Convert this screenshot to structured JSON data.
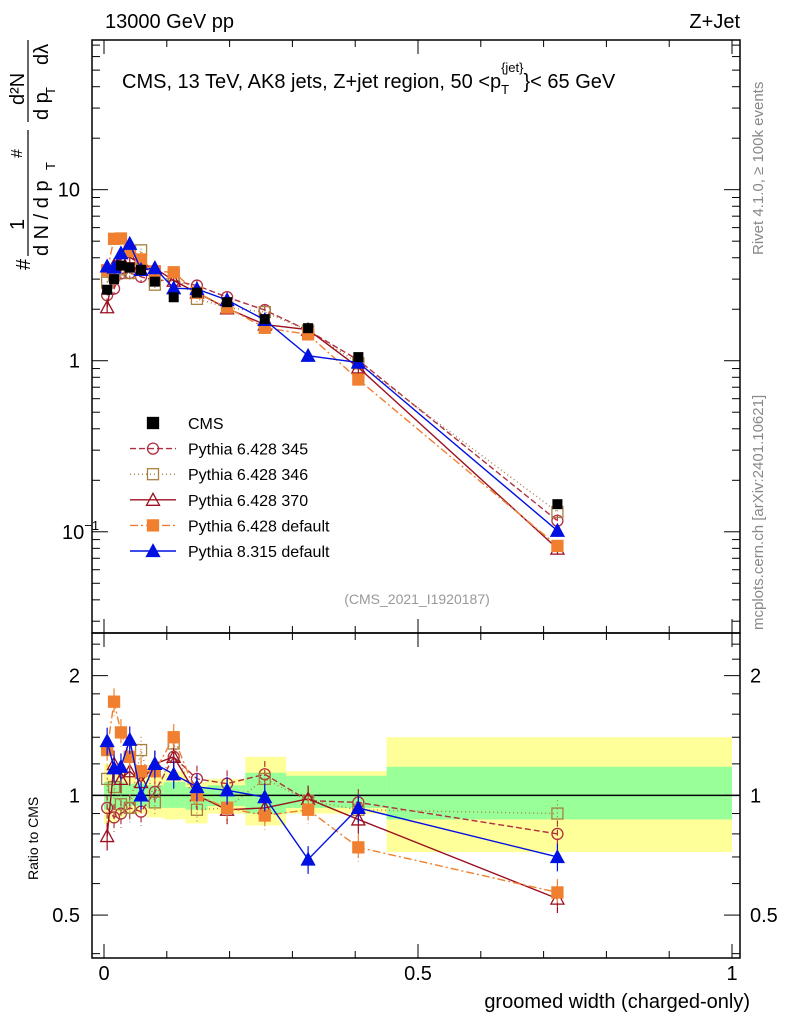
{
  "header": {
    "left": "13000 GeV pp",
    "right": "Z+Jet"
  },
  "side_text": {
    "top": "Rivet 4.1.0, ≥ 100k events",
    "bottom": "mcplots.cern.ch [arXiv:2401.10621]"
  },
  "chart_data": {
    "type": "line",
    "title": "CMS, 13 TeV, AK8 jets, Z+jet region, 50 <p_T^{jet}< 65 GeV",
    "title_parts": {
      "main": "CMS, 13 TeV, AK8 jets, Z+jet region, 50 <p",
      "sub": "T",
      "sup": "{jet}",
      "tail": "}< 65 GeV"
    },
    "analysis_label": "(CMS_2021_I1920187)",
    "ylabel": "1/(dN/dp_T) d²N/(dp_T dλ)",
    "ylabel_parts": {
      "hash": "#",
      "one": "1",
      "den": "d N / d p",
      "T": "T",
      "num": "d²N",
      "den2": "d p",
      "dl": "dλ"
    },
    "ratio_ylabel": "Ratio to CMS",
    "xlabel": "groomed width (charged-only)",
    "xlim": [
      0,
      1
    ],
    "ylim": [
      0.0256,
      75
    ],
    "yscale": "log",
    "ratio_ylim": [
      0.39,
      2.56
    ],
    "x_ticks": [
      {
        "v": 0,
        "label": "0"
      },
      {
        "v": 0.5,
        "label": "0.5"
      },
      {
        "v": 1,
        "label": "1"
      }
    ],
    "y_ticks": [
      {
        "v": 0.1,
        "label": "10",
        "exp": "−1"
      },
      {
        "v": 1,
        "label": "1",
        "exp": ""
      },
      {
        "v": 10,
        "label": "10",
        "exp": ""
      }
    ],
    "ratio_ticks": [
      {
        "v": 0.5,
        "label": "0.5"
      },
      {
        "v": 1,
        "label": "1"
      },
      {
        "v": 2,
        "label": "2"
      }
    ],
    "x": [
      0.005,
      0.016,
      0.027,
      0.041,
      0.059,
      0.081,
      0.111,
      0.148,
      0.196,
      0.256,
      0.325,
      0.405,
      0.722
    ],
    "bin_edges": [
      0,
      0.01,
      0.02,
      0.033,
      0.05,
      0.068,
      0.095,
      0.13,
      0.165,
      0.225,
      0.29,
      0.36,
      0.45,
      1.0
    ],
    "data": {
      "name": "CMS",
      "values": [
        2.6,
        3.0,
        3.6,
        3.5,
        3.4,
        2.9,
        2.35,
        2.5,
        2.2,
        1.75,
        1.55,
        1.05,
        0.145
      ],
      "band_yellow": [
        [
          0.85,
          1.2
        ],
        [
          0.85,
          1.2
        ],
        [
          0.88,
          1.15
        ],
        [
          0.9,
          1.12
        ],
        [
          0.9,
          1.12
        ],
        [
          0.88,
          1.12
        ],
        [
          0.87,
          1.15
        ],
        [
          0.85,
          1.08
        ],
        [
          0.9,
          1.1
        ],
        [
          0.84,
          1.25
        ],
        [
          0.9,
          1.15
        ],
        [
          0.9,
          1.15
        ],
        [
          0.72,
          1.4
        ]
      ],
      "band_green": [
        [
          0.92,
          1.08
        ],
        [
          0.92,
          1.08
        ],
        [
          0.93,
          1.08
        ],
        [
          0.94,
          1.07
        ],
        [
          0.94,
          1.07
        ],
        [
          0.93,
          1.06
        ],
        [
          0.93,
          1.08
        ],
        [
          0.92,
          1.05
        ],
        [
          0.94,
          1.06
        ],
        [
          0.9,
          1.14
        ],
        [
          0.93,
          1.12
        ],
        [
          0.93,
          1.12
        ],
        [
          0.87,
          1.18
        ]
      ]
    },
    "series": [
      {
        "name": "Pythia 6.428 345",
        "color": "#b03040",
        "marker": "circle-open",
        "dash": "6,3",
        "ratio": [
          0.93,
          0.88,
          0.9,
          0.93,
          0.91,
          1.02,
          1.25,
          1.1,
          1.07,
          1.13,
          0.97,
          0.96,
          0.8
        ]
      },
      {
        "name": "Pythia 6.428 346",
        "color": "#a88040",
        "marker": "square-open",
        "dash": "1,3",
        "ratio": [
          1.1,
          1.05,
          0.95,
          0.93,
          1.3,
          0.96,
          1.35,
          0.92,
          0.93,
          1.1,
          0.97,
          0.92,
          0.9
        ]
      },
      {
        "name": "Pythia 6.428 370",
        "color": "#9b1020",
        "marker": "triangle-open",
        "dash": "",
        "ratio": [
          0.79,
          1.2,
          1.1,
          1.15,
          1.08,
          1.2,
          1.25,
          1.0,
          0.92,
          0.93,
          0.98,
          0.87,
          0.55
        ]
      },
      {
        "name": "Pythia 6.428 default",
        "color": "#f08030",
        "marker": "square-filled",
        "dash": "8,3,2,3",
        "ratio": [
          1.3,
          1.72,
          1.44,
          1.25,
          1.15,
          1.15,
          1.4,
          1.0,
          0.93,
          0.89,
          0.92,
          0.74,
          0.57
        ]
      },
      {
        "name": "Pythia 8.315 default",
        "color": "#0010e0",
        "marker": "triangle-filled",
        "dash": "",
        "ratio": [
          1.37,
          1.17,
          1.18,
          1.38,
          1.0,
          1.2,
          1.13,
          1.05,
          1.03,
          0.99,
          0.69,
          0.93,
          0.7
        ]
      }
    ],
    "legend_position": "center-left"
  }
}
